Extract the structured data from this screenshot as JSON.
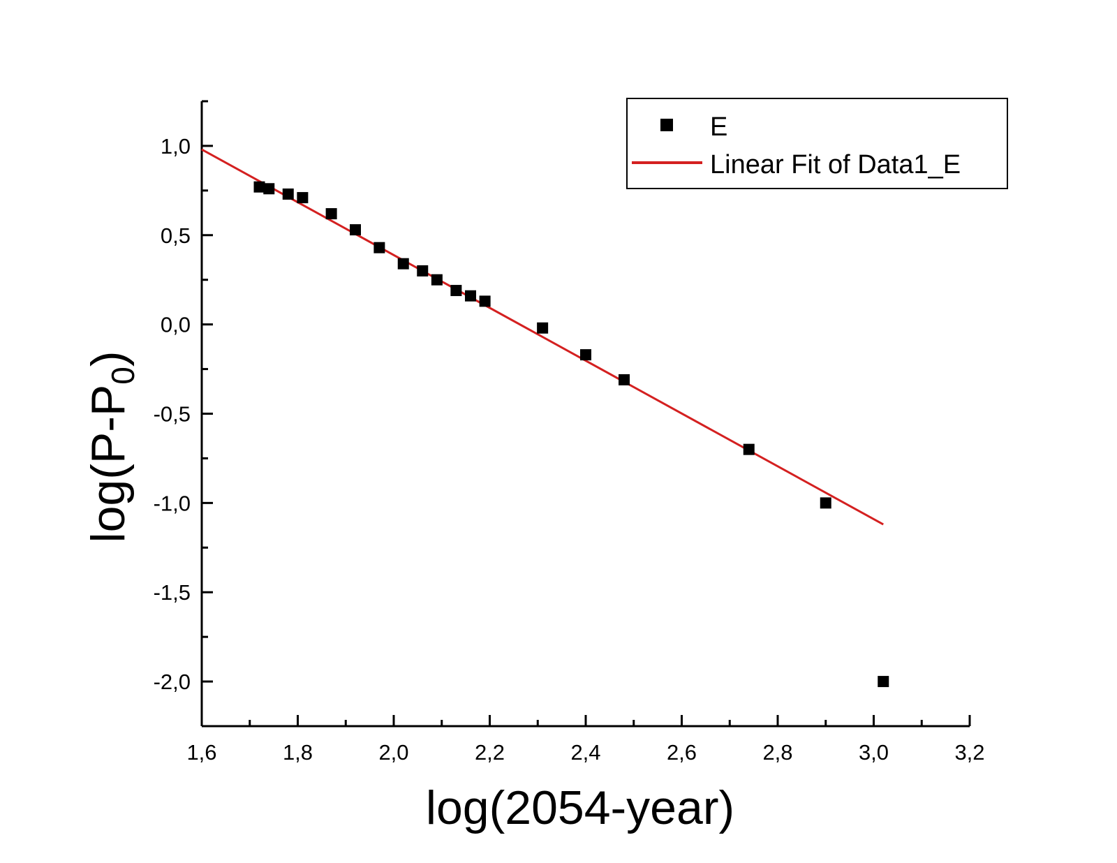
{
  "chart_data": {
    "type": "scatter",
    "xlabel": "log(2054-year)",
    "ylabel_parts": {
      "main": "log(P-P",
      "sub": "0",
      "close": ")"
    },
    "xlim": [
      1.6,
      3.2
    ],
    "ylim": [
      -2.25,
      1.25
    ],
    "x_ticks": [
      1.6,
      1.8,
      2.0,
      2.2,
      2.4,
      2.6,
      2.8,
      3.0,
      3.2
    ],
    "x_tick_labels": [
      "1,6",
      "1,8",
      "2,0",
      "2,2",
      "2,4",
      "2,6",
      "2,8",
      "3,0",
      "3,2"
    ],
    "y_ticks": [
      1.0,
      0.5,
      0.0,
      -0.5,
      -1.0,
      -1.5,
      -2.0
    ],
    "y_tick_labels": [
      "1,0",
      "0,5",
      "0,0",
      "-0,5",
      "-1,0",
      "-1,5",
      "-2,0"
    ],
    "series": [
      {
        "name": "E",
        "kind": "scatter",
        "marker": "square",
        "color": "#000000",
        "x": [
          1.72,
          1.74,
          1.78,
          1.81,
          1.87,
          1.92,
          1.97,
          2.02,
          2.06,
          2.09,
          2.13,
          2.16,
          2.19,
          2.31,
          2.4,
          2.48,
          2.74,
          2.9,
          3.02
        ],
        "y": [
          0.77,
          0.76,
          0.73,
          0.71,
          0.62,
          0.53,
          0.43,
          0.34,
          0.3,
          0.25,
          0.19,
          0.16,
          0.13,
          -0.02,
          -0.17,
          -0.31,
          -0.7,
          -1.0,
          -2.0
        ]
      },
      {
        "name": "Linear Fit of Data1_E",
        "kind": "line",
        "color": "#d42020",
        "x": [
          1.6,
          3.02
        ],
        "y": [
          0.98,
          -1.12
        ]
      }
    ],
    "legend_position": "top-right",
    "grid": false
  }
}
